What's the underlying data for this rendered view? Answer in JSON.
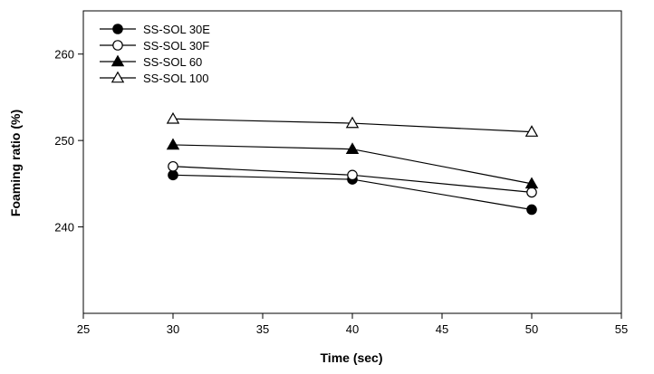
{
  "chart_data": {
    "type": "line",
    "title": "",
    "xlabel": "Time (sec)",
    "ylabel": "Foaming ratio (%)",
    "xlim": [
      25,
      55
    ],
    "ylim": [
      230,
      265
    ],
    "xticks": [
      25,
      30,
      35,
      40,
      45,
      50,
      55
    ],
    "yticks": [
      240,
      250,
      260
    ],
    "grid": false,
    "legend_position": "top-left",
    "x": [
      30,
      40,
      50
    ],
    "series": [
      {
        "name": "SS-SOL 30E",
        "marker": "filled-circle",
        "color": "#000000",
        "values": [
          246,
          245.5,
          242
        ]
      },
      {
        "name": "SS-SOL 30F",
        "marker": "open-circle",
        "color": "#000000",
        "values": [
          247,
          246,
          244
        ]
      },
      {
        "name": "SS-SOL 60",
        "marker": "filled-triangle",
        "color": "#000000",
        "values": [
          249.5,
          249,
          245
        ]
      },
      {
        "name": "SS-SOL 100",
        "marker": "open-triangle",
        "color": "#000000",
        "values": [
          252.5,
          252,
          251
        ]
      }
    ]
  }
}
